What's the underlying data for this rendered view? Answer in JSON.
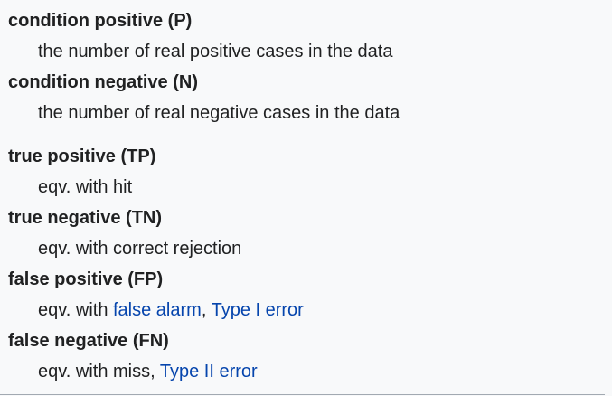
{
  "section1": {
    "items": [
      {
        "term": "condition positive (P)",
        "definition": "the number of real positive cases in the data"
      },
      {
        "term": "condition negative (N)",
        "definition": "the number of real negative cases in the data"
      }
    ]
  },
  "section2": {
    "tp": {
      "term": "true positive (TP)",
      "prefix": "eqv. with hit"
    },
    "tn": {
      "term": "true negative (TN)",
      "prefix": "eqv. with correct rejection"
    },
    "fp": {
      "term": "false positive (FP)",
      "prefix": "eqv. with ",
      "link1": "false alarm",
      "sep": ", ",
      "link2": "Type I error"
    },
    "fn": {
      "term": "false negative (FN)",
      "prefix": "eqv. with miss, ",
      "link1": "Type II error"
    }
  },
  "colors": {
    "text": "#202122",
    "link": "#0645ad",
    "background": "#f8f9fa",
    "divider": "#a2a9b1"
  }
}
